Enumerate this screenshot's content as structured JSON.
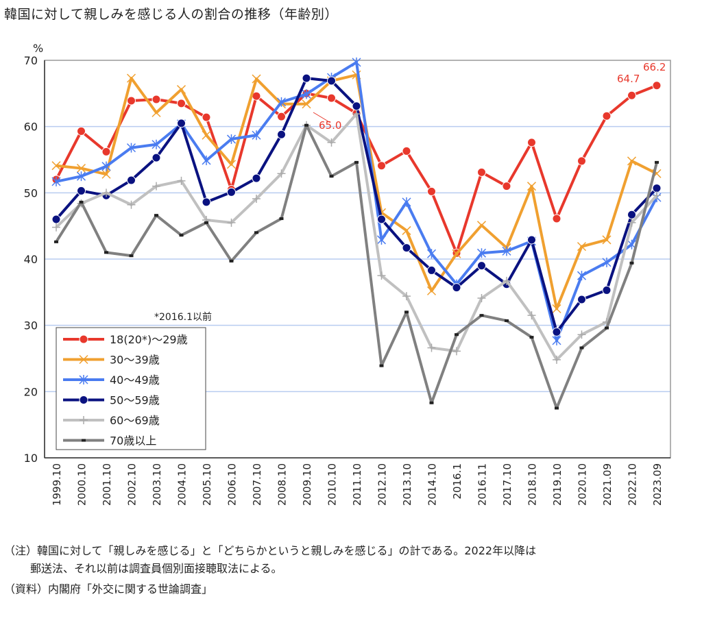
{
  "title": "韓国に対して親しみを感じる人の割合の推移（年齢別）",
  "chart_data": {
    "type": "line",
    "ylabel": "%",
    "ylim": [
      10,
      70
    ],
    "yticks": [
      10,
      20,
      30,
      40,
      50,
      60,
      70
    ],
    "grid": true,
    "legend_position": "bottom-left",
    "legend_note": "*2016.1以前",
    "categories": [
      "1999.10",
      "2000.10",
      "2001.10",
      "2002.10",
      "2003.10",
      "2004.10",
      "2005.10",
      "2006.10",
      "2007.10",
      "2008.10",
      "2009.10",
      "2010.10",
      "2011.10",
      "2012.10",
      "2013.10",
      "2014.10",
      "2016.1",
      "2016.11",
      "2017.10",
      "2018.10",
      "2019.10",
      "2020.10",
      "2021.09",
      "2022.10",
      "2023.09"
    ],
    "series": [
      {
        "name": "18(20*)～29歳",
        "color": "#e8382c",
        "marker": "circle",
        "values": [
          52.0,
          59.3,
          56.2,
          63.9,
          64.1,
          63.5,
          61.4,
          50.5,
          64.6,
          61.5,
          65.0,
          64.3,
          62.0,
          54.1,
          56.3,
          50.2,
          40.9,
          53.1,
          51.0,
          57.6,
          46.1,
          54.8,
          61.6,
          64.7,
          66.2
        ]
      },
      {
        "name": "30～39歳",
        "color": "#f0a030",
        "marker": "x",
        "values": [
          54.1,
          53.7,
          52.8,
          67.3,
          62.1,
          65.6,
          58.7,
          54.3,
          67.2,
          63.4,
          63.4,
          66.9,
          67.8,
          47.0,
          44.3,
          35.2,
          40.8,
          45.1,
          41.7,
          51.0,
          32.5,
          41.9,
          42.9,
          54.8,
          52.9
        ]
      },
      {
        "name": "40～49歳",
        "color": "#4a7cf0",
        "marker": "star",
        "values": [
          51.7,
          52.5,
          54.0,
          56.8,
          57.3,
          60.4,
          54.9,
          58.1,
          58.7,
          63.7,
          64.9,
          67.4,
          69.7,
          42.9,
          48.6,
          40.8,
          36.2,
          40.9,
          41.2,
          42.7,
          27.7,
          37.5,
          39.5,
          42.2,
          49.3
        ]
      },
      {
        "name": "50～59歳",
        "color": "#0a1280",
        "marker": "circle",
        "values": [
          46.0,
          50.3,
          49.6,
          51.9,
          55.3,
          60.5,
          48.6,
          50.1,
          52.2,
          58.8,
          67.3,
          66.9,
          63.1,
          46.0,
          41.7,
          38.3,
          35.7,
          39.0,
          36.2,
          42.9,
          29.0,
          33.9,
          35.3,
          46.7,
          50.7
        ]
      },
      {
        "name": "60～69歳",
        "color": "#c0c0c0",
        "marker": "plus",
        "values": [
          44.8,
          48.4,
          50.0,
          48.2,
          51.0,
          51.8,
          45.9,
          45.5,
          49.1,
          52.9,
          60.2,
          57.6,
          61.9,
          37.5,
          34.4,
          26.6,
          26.1,
          34.1,
          36.7,
          31.5,
          24.8,
          28.6,
          30.5,
          45.5,
          49.6
        ]
      },
      {
        "name": "70歳以上",
        "color": "#808080",
        "marker": "dash",
        "values": [
          42.6,
          48.6,
          41.0,
          40.5,
          46.6,
          43.6,
          45.5,
          39.7,
          44.0,
          46.1,
          60.2,
          52.5,
          54.6,
          23.9,
          32.0,
          18.3,
          28.6,
          31.5,
          30.7,
          28.2,
          17.5,
          26.6,
          29.6,
          39.4,
          54.6
        ]
      }
    ],
    "annotations": [
      "65.0",
      "64.7",
      "66.2"
    ]
  },
  "notes": {
    "line1": "（注）韓国に対して「親しみを感じる」と「どちらかというと親しみを感じる」の計である。2022年以降は",
    "line2": "郵送法、それ以前は調査員個別面接聴取法による。",
    "source": "（資料）内閣府「外交に関する世論調査」"
  }
}
